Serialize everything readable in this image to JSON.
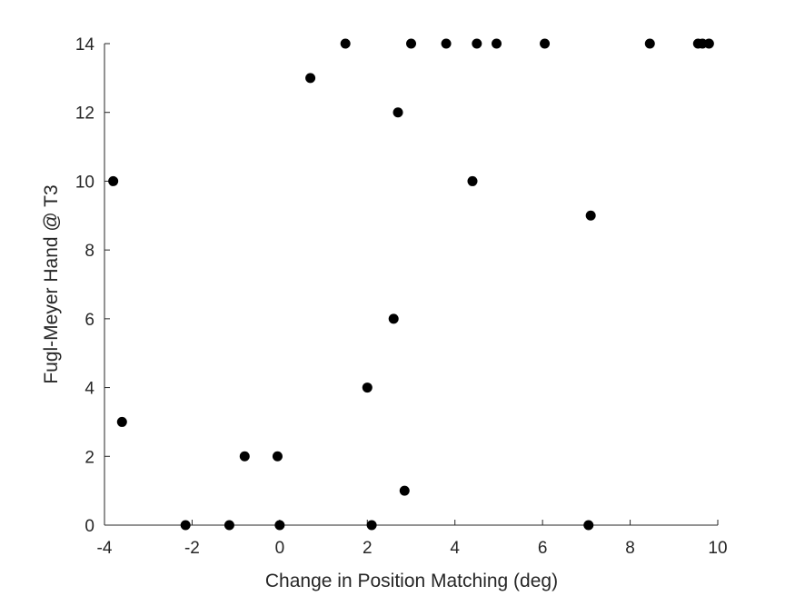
{
  "chart_data": {
    "type": "scatter",
    "title": "",
    "xlabel": "Change in Position Matching (deg)",
    "ylabel": "Fugl-Meyer Hand @ T3",
    "xlim": [
      -4,
      10
    ],
    "ylim": [
      0,
      14
    ],
    "xticks": [
      "-4",
      "-2",
      "0",
      "2",
      "4",
      "6",
      "8",
      "10"
    ],
    "yticks": [
      "0",
      "2",
      "4",
      "6",
      "8",
      "10",
      "12",
      "14"
    ],
    "grid": false,
    "marker_color": "#000000",
    "points": [
      {
        "x": -3.8,
        "y": 10
      },
      {
        "x": -3.6,
        "y": 3
      },
      {
        "x": -2.15,
        "y": 0
      },
      {
        "x": -1.15,
        "y": 0
      },
      {
        "x": -0.8,
        "y": 2
      },
      {
        "x": -0.05,
        "y": 2
      },
      {
        "x": 0.0,
        "y": 0
      },
      {
        "x": 0.7,
        "y": 13
      },
      {
        "x": 1.5,
        "y": 14
      },
      {
        "x": 2.0,
        "y": 4
      },
      {
        "x": 2.1,
        "y": 0
      },
      {
        "x": 2.6,
        "y": 6
      },
      {
        "x": 2.7,
        "y": 12
      },
      {
        "x": 2.85,
        "y": 1
      },
      {
        "x": 3.0,
        "y": 14
      },
      {
        "x": 3.8,
        "y": 14
      },
      {
        "x": 4.4,
        "y": 10
      },
      {
        "x": 4.5,
        "y": 14
      },
      {
        "x": 4.95,
        "y": 14
      },
      {
        "x": 6.05,
        "y": 14
      },
      {
        "x": 7.05,
        "y": 0
      },
      {
        "x": 7.1,
        "y": 9
      },
      {
        "x": 8.45,
        "y": 14
      },
      {
        "x": 9.55,
        "y": 14
      },
      {
        "x": 9.65,
        "y": 14
      },
      {
        "x": 9.8,
        "y": 14
      }
    ]
  }
}
